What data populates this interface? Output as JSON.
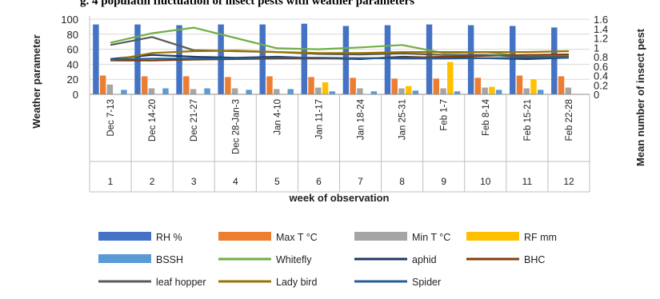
{
  "header": {
    "title_fragment": "g. 4 populatin fluctuation of insect pests with weather parameters"
  },
  "chart_data": {
    "type": "bar",
    "title": "",
    "xlabel": "week of observation",
    "ylabel_left": "Weather parameter",
    "ylabel_right": "Mean number of insect pest",
    "ylim_left": [
      0,
      100
    ],
    "yticks_left": [
      "0",
      "20",
      "40",
      "60",
      "80",
      "100"
    ],
    "ylim_right": [
      0,
      1.6
    ],
    "yticks_right": [
      "0",
      "0.2",
      "0.4",
      "0.6",
      "0.8",
      "1",
      "1.2",
      "1.4",
      "1.6"
    ],
    "categories": [
      "Dec 7-13",
      "Dec 14-20",
      "Dec 21-27",
      "Dec 28-Jan-3",
      "Jan 4-10",
      "Jan 11-17",
      "Jan 18-24",
      "Jan 25-31",
      "Feb 1-7",
      "Feb 8-14",
      "Feb 15-21",
      "Feb 22-28"
    ],
    "weeks": [
      "1",
      "2",
      "3",
      "4",
      "5",
      "6",
      "7",
      "8",
      "9",
      "10",
      "11",
      "12"
    ],
    "bar_series": [
      {
        "name": "RH %",
        "color": "#4472C4",
        "values": [
          93,
          93,
          92,
          93,
          93,
          94,
          91,
          92,
          93,
          92,
          91,
          89
        ]
      },
      {
        "name": "Max T °C",
        "color": "#ED7D31",
        "values": [
          25,
          24,
          24,
          23,
          24,
          23,
          22,
          21,
          21,
          22,
          25,
          24
        ]
      },
      {
        "name": "Min T °C",
        "color": "#A5A5A5",
        "values": [
          13,
          8,
          7,
          8,
          7,
          9,
          8,
          8,
          8,
          9,
          8,
          9
        ]
      },
      {
        "name": "RF mm",
        "color": "#FFC000",
        "values": [
          0,
          0,
          0,
          0,
          0,
          16,
          0,
          11,
          43,
          10,
          20,
          0
        ]
      },
      {
        "name": "BSSH",
        "color": "#5B9BD5",
        "values": [
          6,
          8,
          8,
          6,
          7,
          4,
          4,
          5,
          4,
          6,
          6,
          0
        ]
      }
    ],
    "line_series": [
      {
        "name": "Whitefly",
        "color": "#70AD47",
        "values": [
          1.1,
          1.3,
          1.42,
          1.2,
          0.98,
          0.96,
          1.0,
          1.05,
          0.88,
          0.9,
          0.8,
          0.83
        ]
      },
      {
        "name": "aphid",
        "color": "#1F3864",
        "values": [
          0.75,
          0.84,
          0.8,
          0.78,
          0.8,
          0.77,
          0.75,
          0.8,
          0.78,
          0.77,
          0.75,
          0.78
        ]
      },
      {
        "name": "BHC",
        "color": "#843C0C",
        "values": [
          0.72,
          0.72,
          0.74,
          0.75,
          0.76,
          0.76,
          0.77,
          0.78,
          0.8,
          0.82,
          0.84,
          0.85
        ]
      },
      {
        "name": "leaf hopper",
        "color": "#595959",
        "values": [
          1.05,
          1.22,
          0.94,
          0.92,
          0.9,
          0.86,
          0.85,
          0.87,
          0.84,
          0.84,
          0.8,
          0.8
        ]
      },
      {
        "name": "Lady bird",
        "color": "#997300",
        "values": [
          0.72,
          0.88,
          0.92,
          0.93,
          0.9,
          0.88,
          0.88,
          0.9,
          0.9,
          0.9,
          0.9,
          0.92
        ]
      },
      {
        "name": "Spider",
        "color": "#255E91",
        "values": [
          0.74,
          0.76,
          0.76,
          0.77,
          0.78,
          0.78,
          0.77,
          0.76,
          0.76,
          0.77,
          0.78,
          0.78
        ]
      }
    ],
    "legend_position": "bottom",
    "legend_order": [
      "RH %",
      "Max T °C",
      "Min T °C",
      "RF mm",
      "BSSH",
      "Whitefly",
      "aphid",
      "BHC",
      "leaf hopper",
      "Lady bird",
      "Spider"
    ],
    "grid": true
  }
}
